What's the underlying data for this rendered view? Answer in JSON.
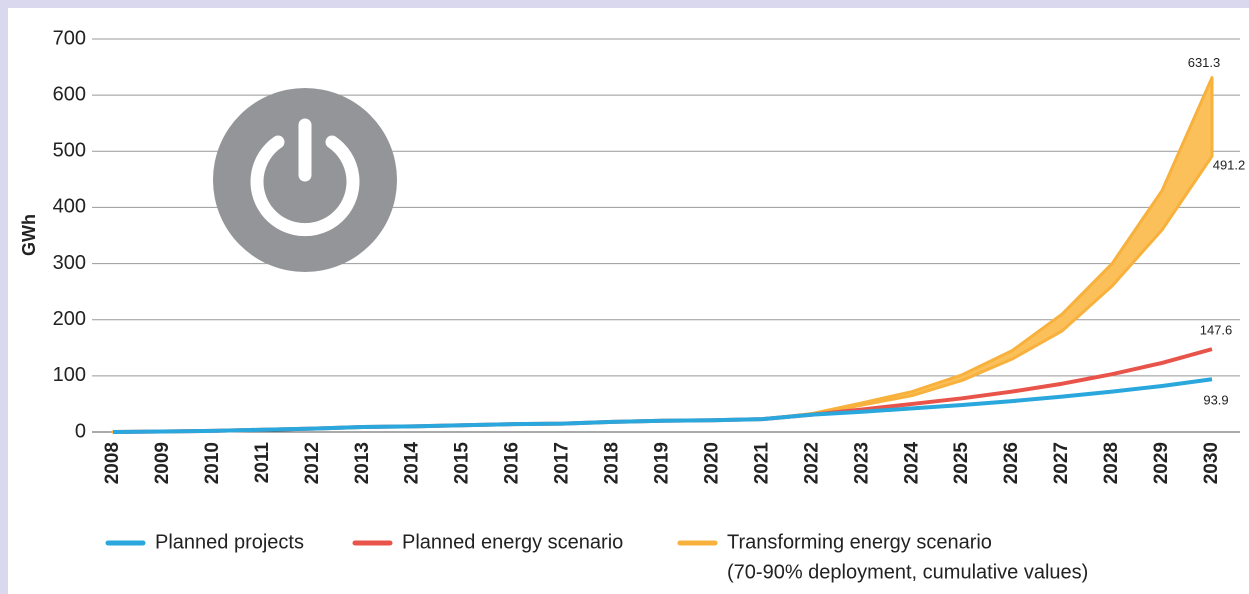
{
  "chart_data": {
    "type": "line",
    "y_label": "GWh",
    "categories": [
      "2008",
      "2009",
      "2010",
      "2011",
      "2012",
      "2013",
      "2014",
      "2015",
      "2016",
      "2017",
      "2018",
      "2019",
      "2020",
      "2021",
      "2022",
      "2023",
      "2024",
      "2025",
      "2026",
      "2027",
      "2028",
      "2029",
      "2030"
    ],
    "ylim": [
      0,
      700
    ],
    "yticks": [
      0,
      100,
      200,
      300,
      400,
      500,
      600,
      700
    ],
    "grid": true,
    "series": [
      {
        "name": "Planned projects",
        "color": "#2aa7dc",
        "values": [
          0,
          1,
          2,
          4,
          6,
          9,
          10,
          12,
          14,
          15,
          18,
          20,
          21,
          23,
          31,
          36,
          42,
          48,
          55,
          63,
          72,
          82,
          93.9
        ]
      },
      {
        "name": "Planned energy scenario",
        "color": "#e8534a",
        "values": [
          0,
          1,
          2,
          4,
          6,
          9,
          10,
          12,
          14,
          15,
          18,
          20,
          21,
          23,
          31,
          40,
          50,
          60,
          72,
          86,
          103,
          123,
          147.6
        ]
      },
      {
        "name": "Transforming energy scenario",
        "note": "(70-90% deployment, cumulative values)",
        "type": "band",
        "color": "#f7b13c",
        "values": [
          0,
          1,
          2,
          4,
          6,
          9,
          10,
          12,
          14,
          15,
          18,
          20,
          21,
          23,
          33,
          52,
          72,
          102,
          145,
          210,
          300,
          430,
          631.3
        ],
        "lower": [
          0,
          1,
          2,
          4,
          6,
          9,
          10,
          12,
          14,
          15,
          18,
          20,
          21,
          23,
          31,
          48,
          65,
          92,
          130,
          180,
          260,
          360,
          491.2
        ]
      }
    ]
  }
}
